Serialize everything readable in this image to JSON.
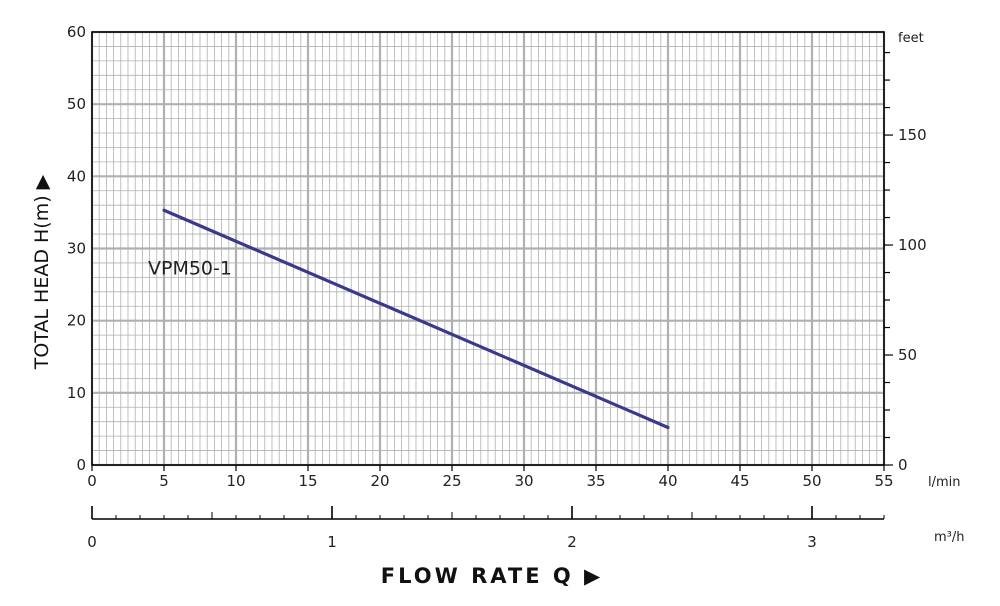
{
  "chart_data": {
    "type": "line",
    "xlabel": "FLOW   RATE Q ▶",
    "ylabel": "TOTAL HEAD H(m) ▶",
    "x_unit": "l/min",
    "x2_unit": "m³/h",
    "y2_unit": "feet",
    "xlim": [
      0,
      55
    ],
    "ylim": [
      0,
      60
    ],
    "x2lim": [
      0,
      3.3
    ],
    "y2lim": [
      0,
      196.85
    ],
    "x_ticks": [
      0,
      5,
      10,
      15,
      20,
      25,
      30,
      35,
      40,
      45,
      50,
      55
    ],
    "y_ticks": [
      0,
      10,
      20,
      30,
      40,
      50,
      60
    ],
    "x2_ticks": [
      0,
      1,
      2,
      3
    ],
    "y2_ticks": [
      0,
      50,
      100,
      150
    ],
    "grid": true,
    "series": [
      {
        "name": "VPM50-1",
        "x": [
          5,
          40
        ],
        "y": [
          35.3,
          5.2
        ],
        "color": "#3a3a8c"
      }
    ],
    "colors": {
      "grid": "#b0b0b0",
      "axis": "#000000",
      "line": "#3a3a8c"
    }
  }
}
